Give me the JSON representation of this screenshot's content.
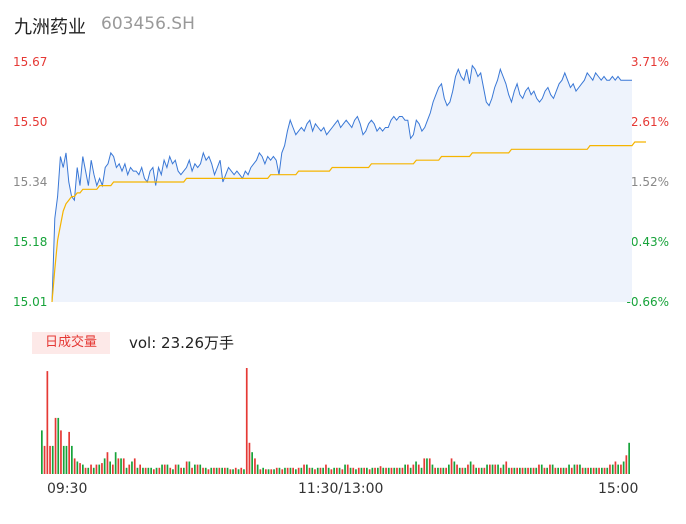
{
  "header": {
    "stock_name": "九洲药业",
    "stock_code": "603456.SH"
  },
  "volume_panel": {
    "tag_label": "日成交量",
    "volume_text": "vol: 23.26万手"
  },
  "colors": {
    "up": "#e53935",
    "down": "#17a33a",
    "price_line": "#3a78d6",
    "avg_line": "#f5b400",
    "area_fill": "#eef3fc"
  },
  "chart_data": [
    {
      "type": "line",
      "title": "",
      "y_left_ticks": [
        "15.67",
        "15.50",
        "15.34",
        "15.18",
        "15.01"
      ],
      "y_right_ticks": [
        "3.71%",
        "2.61%",
        "1.52%",
        "0.43%",
        "-0.66%"
      ],
      "ylim": [
        15.01,
        15.67
      ],
      "series": [
        {
          "role": "price",
          "values": [
            15.01,
            15.24,
            15.3,
            15.41,
            15.38,
            15.42,
            15.34,
            15.3,
            15.29,
            15.38,
            15.33,
            15.41,
            15.37,
            15.33,
            15.4,
            15.36,
            15.33,
            15.35,
            15.33,
            15.38,
            15.39,
            15.42,
            15.41,
            15.38,
            15.39,
            15.37,
            15.39,
            15.36,
            15.38,
            15.37,
            15.37,
            15.36,
            15.38,
            15.35,
            15.34,
            15.37,
            15.38,
            15.33,
            15.38,
            15.36,
            15.4,
            15.38,
            15.41,
            15.39,
            15.4,
            15.37,
            15.36,
            15.37,
            15.38,
            15.4,
            15.37,
            15.39,
            15.38,
            15.39,
            15.42,
            15.4,
            15.41,
            15.39,
            15.36,
            15.38,
            15.4,
            15.34,
            15.36,
            15.38,
            15.37,
            15.36,
            15.37,
            15.36,
            15.35,
            15.37,
            15.36,
            15.38,
            15.39,
            15.4,
            15.42,
            15.41,
            15.39,
            15.41,
            15.4,
            15.41,
            15.4,
            15.36,
            15.42,
            15.44,
            15.48,
            15.51,
            15.49,
            15.47,
            15.48,
            15.49,
            15.48,
            15.5,
            15.51,
            15.48,
            15.5,
            15.49,
            15.48,
            15.49,
            15.47,
            15.48,
            15.49,
            15.5,
            15.51,
            15.49,
            15.5,
            15.51,
            15.5,
            15.49,
            15.51,
            15.52,
            15.5,
            15.47,
            15.48,
            15.5,
            15.51,
            15.5,
            15.48,
            15.49,
            15.48,
            15.49,
            15.49,
            15.51,
            15.52,
            15.51,
            15.52,
            15.52,
            15.51,
            15.51,
            15.46,
            15.47,
            15.51,
            15.5,
            15.48,
            15.49,
            15.51,
            15.53,
            15.56,
            15.58,
            15.6,
            15.61,
            15.57,
            15.55,
            15.56,
            15.59,
            15.63,
            15.65,
            15.63,
            15.62,
            15.65,
            15.61,
            15.66,
            15.65,
            15.63,
            15.64,
            15.6,
            15.56,
            15.55,
            15.57,
            15.6,
            15.62,
            15.65,
            15.63,
            15.61,
            15.58,
            15.56,
            15.59,
            15.61,
            15.58,
            15.57,
            15.59,
            15.6,
            15.58,
            15.59,
            15.57,
            15.56,
            15.57,
            15.59,
            15.6,
            15.58,
            15.57,
            15.59,
            15.61,
            15.62,
            15.64,
            15.62,
            15.6,
            15.61,
            15.59,
            15.6,
            15.61,
            15.62,
            15.64,
            15.63,
            15.62,
            15.64,
            15.63,
            15.62,
            15.63,
            15.62,
            15.62,
            15.63,
            15.62,
            15.63,
            15.62,
            15.62,
            15.62,
            15.62,
            15.62
          ]
        },
        {
          "role": "average",
          "values": [
            15.01,
            15.1,
            15.18,
            15.22,
            15.26,
            15.28,
            15.29,
            15.3,
            15.3,
            15.31,
            15.31,
            15.32,
            15.32,
            15.32,
            15.32,
            15.32,
            15.32,
            15.33,
            15.33,
            15.33,
            15.33,
            15.33,
            15.34,
            15.34,
            15.34,
            15.34,
            15.34,
            15.34,
            15.34,
            15.34,
            15.34,
            15.34,
            15.34,
            15.34,
            15.34,
            15.34,
            15.34,
            15.34,
            15.34,
            15.34,
            15.34,
            15.34,
            15.34,
            15.34,
            15.34,
            15.34,
            15.34,
            15.34,
            15.35,
            15.35,
            15.35,
            15.35,
            15.35,
            15.35,
            15.35,
            15.35,
            15.35,
            15.35,
            15.35,
            15.35,
            15.35,
            15.35,
            15.35,
            15.35,
            15.35,
            15.35,
            15.35,
            15.35,
            15.35,
            15.35,
            15.35,
            15.35,
            15.35,
            15.35,
            15.35,
            15.35,
            15.35,
            15.35,
            15.36,
            15.36,
            15.36,
            15.36,
            15.36,
            15.36,
            15.36,
            15.36,
            15.36,
            15.36,
            15.37,
            15.37,
            15.37,
            15.37,
            15.37,
            15.37,
            15.37,
            15.37,
            15.37,
            15.37,
            15.37,
            15.37,
            15.38,
            15.38,
            15.38,
            15.38,
            15.38,
            15.38,
            15.38,
            15.38,
            15.38,
            15.38,
            15.38,
            15.38,
            15.38,
            15.38,
            15.39,
            15.39,
            15.39,
            15.39,
            15.39,
            15.39,
            15.39,
            15.39,
            15.39,
            15.39,
            15.39,
            15.39,
            15.39,
            15.39,
            15.39,
            15.39,
            15.4,
            15.4,
            15.4,
            15.4,
            15.4,
            15.4,
            15.4,
            15.4,
            15.4,
            15.41,
            15.41,
            15.41,
            15.41,
            15.41,
            15.41,
            15.41,
            15.41,
            15.41,
            15.41,
            15.41,
            15.42,
            15.42,
            15.42,
            15.42,
            15.42,
            15.42,
            15.42,
            15.42,
            15.42,
            15.42,
            15.42,
            15.42,
            15.42,
            15.42,
            15.43,
            15.43,
            15.43,
            15.43,
            15.43,
            15.43,
            15.43,
            15.43,
            15.43,
            15.43,
            15.43,
            15.43,
            15.43,
            15.43,
            15.43,
            15.43,
            15.43,
            15.43,
            15.43,
            15.43,
            15.43,
            15.43,
            15.43,
            15.43,
            15.43,
            15.43,
            15.43,
            15.43,
            15.44,
            15.44,
            15.44,
            15.44,
            15.44,
            15.44,
            15.44,
            15.44,
            15.44,
            15.44,
            15.44,
            15.44,
            15.44,
            15.44,
            15.44,
            15.44,
            15.45,
            15.45,
            15.45,
            15.45,
            15.45
          ]
        }
      ]
    },
    {
      "type": "bar",
      "title": "",
      "x_ticks": [
        "09:30",
        "11:30/13:00",
        "15:00"
      ],
      "values": [
        28,
        18,
        66,
        18,
        18,
        36,
        36,
        28,
        18,
        18,
        27,
        18,
        10,
        8,
        7,
        6,
        4,
        4,
        6,
        4,
        6,
        6,
        7,
        10,
        14,
        8,
        6,
        14,
        10,
        10,
        10,
        4,
        6,
        8,
        10,
        4,
        6,
        4,
        4,
        4,
        4,
        3,
        4,
        4,
        6,
        6,
        6,
        4,
        3,
        6,
        6,
        4,
        4,
        8,
        8,
        4,
        6,
        6,
        6,
        4,
        4,
        3,
        4,
        4,
        4,
        4,
        4,
        4,
        4,
        3,
        3,
        4,
        3,
        4,
        3,
        68,
        20,
        14,
        10,
        6,
        3,
        4,
        3,
        3,
        3,
        3,
        4,
        4,
        3,
        4,
        4,
        4,
        4,
        3,
        4,
        4,
        6,
        6,
        4,
        4,
        3,
        4,
        4,
        4,
        6,
        4,
        3,
        4,
        4,
        4,
        3,
        6,
        6,
        4,
        4,
        3,
        4,
        4,
        4,
        4,
        3,
        4,
        4,
        4,
        5,
        4,
        4,
        4,
        4,
        4,
        4,
        4,
        4,
        6,
        6,
        4,
        6,
        8,
        6,
        4,
        10,
        10,
        10,
        6,
        4,
        4,
        4,
        4,
        4,
        6,
        10,
        8,
        6,
        4,
        4,
        4,
        6,
        8,
        6,
        4,
        4,
        4,
        4,
        6,
        6,
        6,
        6,
        6,
        4,
        6,
        8,
        4,
        4,
        4,
        4,
        4,
        4,
        4,
        4,
        4,
        4,
        4,
        6,
        6,
        4,
        4,
        6,
        6,
        4,
        4,
        4,
        4,
        4,
        6,
        4,
        6,
        6,
        6,
        4,
        4,
        4,
        4,
        4,
        4,
        4,
        4,
        4,
        4,
        6,
        6,
        8,
        6,
        6,
        8,
        12,
        20
      ],
      "bar_colors": [
        "down",
        "up",
        "up",
        "up",
        "down",
        "up",
        "down",
        "up",
        "down",
        "down",
        "up",
        "down",
        "up",
        "down",
        "up",
        "down",
        "up",
        "down",
        "up",
        "down",
        "up",
        "down",
        "up",
        "down",
        "up",
        "down",
        "up",
        "down",
        "up",
        "down",
        "up",
        "down",
        "up",
        "down",
        "up",
        "down",
        "up",
        "down",
        "up",
        "down",
        "down",
        "up",
        "down",
        "up",
        "down",
        "up",
        "down",
        "up",
        "down",
        "up",
        "down",
        "up",
        "down",
        "up",
        "down",
        "up",
        "down",
        "up",
        "down",
        "up",
        "down",
        "up",
        "down",
        "up",
        "down",
        "up",
        "down",
        "up",
        "down",
        "up",
        "down",
        "up",
        "down",
        "up",
        "down",
        "up",
        "up",
        "down",
        "up",
        "down",
        "up",
        "down",
        "up",
        "down",
        "up",
        "down",
        "up",
        "down",
        "up",
        "down",
        "up",
        "down",
        "up",
        "down",
        "up",
        "down",
        "up",
        "down",
        "up",
        "down",
        "up",
        "down",
        "up",
        "down",
        "up",
        "down",
        "up",
        "down",
        "up",
        "down",
        "up",
        "down",
        "up",
        "down",
        "up",
        "down",
        "up",
        "down",
        "up",
        "down",
        "up",
        "down",
        "up",
        "down",
        "up",
        "down",
        "up",
        "down",
        "up",
        "down",
        "up",
        "down",
        "up",
        "down",
        "up",
        "down",
        "up",
        "down",
        "up",
        "down",
        "up",
        "down",
        "up",
        "down",
        "up",
        "down",
        "up",
        "down",
        "up",
        "down",
        "up",
        "down",
        "up",
        "down",
        "up",
        "down",
        "up",
        "down",
        "up",
        "down",
        "up",
        "down",
        "up",
        "down",
        "up",
        "down",
        "up",
        "down",
        "up",
        "down",
        "up",
        "down",
        "up",
        "down",
        "up",
        "down",
        "up",
        "down",
        "up",
        "down",
        "up",
        "down",
        "up",
        "down",
        "up",
        "down",
        "up",
        "down",
        "up",
        "down",
        "up",
        "down",
        "up",
        "down",
        "up",
        "down",
        "up",
        "down",
        "up",
        "down",
        "up",
        "down",
        "up",
        "down",
        "up",
        "down",
        "up",
        "down",
        "up",
        "down",
        "up",
        "down",
        "up",
        "down",
        "up",
        "down",
        "up",
        "down",
        "up",
        "down",
        "up",
        "down",
        "up",
        "down",
        "up",
        "down",
        "up",
        "down",
        "up"
      ]
    }
  ]
}
